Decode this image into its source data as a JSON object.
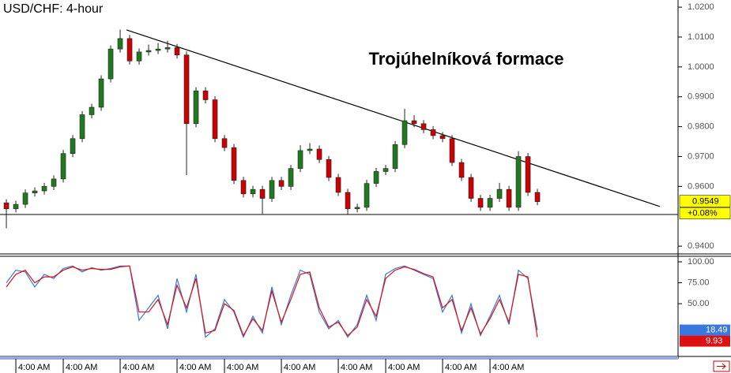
{
  "chart_data": [
    {
      "type": "candlestick",
      "title": "USD/CHF: 4-hour",
      "annotation": "Trojúhelníková formace",
      "change_label": "+0.08%",
      "categories": [
        null,
        "4:00 AM",
        null,
        null,
        null,
        null,
        "4:00 AM",
        null,
        null,
        null,
        null,
        null,
        "4:00 AM",
        null,
        null,
        null,
        null,
        null,
        "4:00 AM",
        null,
        null,
        null,
        null,
        "4:00 AM",
        null,
        null,
        null,
        null,
        null,
        "4:00 AM",
        null,
        null,
        null,
        null,
        null,
        "4:00 AM",
        null,
        null,
        null,
        null,
        "4:00 AM",
        null,
        null,
        null,
        null,
        null,
        "4:00 AM",
        null,
        null,
        null,
        null,
        "4:00 AM",
        null,
        null,
        null,
        null,
        null
      ],
      "open": [
        0.9545,
        0.9525,
        0.954,
        0.9578,
        0.9585,
        0.96,
        0.9625,
        0.971,
        0.976,
        0.984,
        0.9865,
        0.996,
        1.006,
        1.0095,
        1.002,
        1.005,
        1.0055,
        1.006,
        1.0065,
        1.004,
        0.981,
        0.992,
        0.989,
        0.976,
        0.973,
        0.962,
        0.9575,
        0.959,
        0.956,
        0.962,
        0.96,
        0.966,
        0.972,
        0.9725,
        0.969,
        0.963,
        0.958,
        0.9525,
        0.953,
        0.961,
        0.965,
        0.966,
        0.974,
        0.982,
        0.981,
        0.979,
        0.977,
        0.976,
        0.968,
        0.963,
        0.956,
        0.953,
        0.956,
        0.959,
        0.953,
        0.97,
        0.958
      ],
      "high": [
        0.9557,
        0.9552,
        0.959,
        0.9597,
        0.9612,
        0.9637,
        0.9722,
        0.9772,
        0.9852,
        0.9877,
        0.9972,
        1.0072,
        1.0125,
        1.0107,
        1.0062,
        1.0075,
        1.008,
        1.0088,
        1.0077,
        1.0052,
        0.9932,
        0.9932,
        0.9902,
        0.9772,
        0.9742,
        0.9632,
        0.9602,
        0.9602,
        0.9632,
        0.9632,
        0.9672,
        0.9738,
        0.9745,
        0.9737,
        0.9702,
        0.9642,
        0.9592,
        0.9542,
        0.9622,
        0.9662,
        0.9672,
        0.9752,
        0.986,
        0.9838,
        0.9822,
        0.9802,
        0.9782,
        0.9772,
        0.9692,
        0.9642,
        0.9572,
        0.9572,
        0.9612,
        0.9602,
        0.9718,
        0.9712,
        0.9592
      ],
      "low": [
        0.946,
        0.9513,
        0.9528,
        0.9566,
        0.9573,
        0.9588,
        0.9613,
        0.9698,
        0.9748,
        0.9828,
        0.9853,
        0.9948,
        1.0048,
        1.0008,
        1.0008,
        1.0038,
        1.0043,
        1.0048,
        1.0028,
        0.9638,
        0.9798,
        0.9878,
        0.9748,
        0.9718,
        0.9608,
        0.9563,
        0.9563,
        0.9508,
        0.9548,
        0.9588,
        0.9588,
        0.9648,
        0.9708,
        0.9678,
        0.9618,
        0.9568,
        0.9505,
        0.9513,
        0.9518,
        0.9598,
        0.9638,
        0.9648,
        0.9728,
        0.9798,
        0.9778,
        0.9758,
        0.9748,
        0.9668,
        0.9618,
        0.9548,
        0.9518,
        0.9518,
        0.9548,
        0.9518,
        0.9518,
        0.9568,
        0.9537
      ],
      "close": [
        0.9525,
        0.954,
        0.9578,
        0.9585,
        0.96,
        0.9625,
        0.971,
        0.976,
        0.984,
        0.9865,
        0.996,
        1.006,
        1.0095,
        1.002,
        1.005,
        1.0055,
        1.006,
        1.0065,
        1.004,
        0.981,
        0.992,
        0.989,
        0.976,
        0.973,
        0.962,
        0.9575,
        0.959,
        0.956,
        0.962,
        0.96,
        0.966,
        0.972,
        0.9725,
        0.969,
        0.963,
        0.958,
        0.9525,
        0.953,
        0.961,
        0.965,
        0.966,
        0.974,
        0.982,
        0.981,
        0.979,
        0.977,
        0.976,
        0.968,
        0.963,
        0.956,
        0.953,
        0.956,
        0.959,
        0.953,
        0.97,
        0.958,
        0.9549
      ],
      "up_color": "#1f7a1f",
      "down_color": "#cc0000",
      "xlim": [
        -0.67,
        70.83
      ],
      "ylim": [
        0.9374,
        1.0224
      ],
      "yticks": [
        {
          "value": 1.02,
          "label": "1.0200"
        },
        {
          "value": 1.01,
          "label": "1.0100"
        },
        {
          "value": 1.0,
          "label": "1.0000"
        },
        {
          "value": 0.99,
          "label": "0.9900"
        },
        {
          "value": 0.98,
          "label": "0.9800"
        },
        {
          "value": 0.97,
          "label": "0.9700"
        },
        {
          "value": 0.96,
          "label": "0.9600"
        },
        {
          "value": 0.94,
          "label": "0.9400"
        }
      ],
      "trendline": {
        "x": [
          12.67,
          68.9
        ],
        "y": [
          1.0124,
          0.9533
        ]
      },
      "support": 0.9506
    },
    {
      "type": "line",
      "series": [
        {
          "color": "#3a78e0",
          "values": [
            75,
            90,
            88,
            70,
            85,
            80,
            92,
            95,
            88,
            93,
            90,
            92,
            95,
            95,
            30,
            45,
            60,
            20,
            80,
            40,
            85,
            10,
            20,
            55,
            40,
            10,
            35,
            15,
            70,
            25,
            60,
            90,
            85,
            40,
            20,
            30,
            10,
            25,
            60,
            30,
            85,
            92,
            95,
            90,
            85,
            80,
            40,
            60,
            15,
            50,
            12,
            35,
            60,
            25,
            90,
            80,
            18.49
          ]
        },
        {
          "color": "#dd1111",
          "values": [
            70,
            85,
            90,
            75,
            82,
            82,
            90,
            94,
            90,
            92,
            91,
            91,
            94,
            95,
            40,
            40,
            55,
            25,
            72,
            45,
            80,
            15,
            18,
            50,
            42,
            12,
            32,
            18,
            65,
            28,
            55,
            85,
            88,
            45,
            22,
            28,
            12,
            22,
            55,
            35,
            80,
            90,
            94,
            91,
            86,
            82,
            45,
            55,
            18,
            45,
            14,
            32,
            55,
            28,
            85,
            82,
            9.93
          ]
        }
      ],
      "ylim": [
        -13,
        106.6
      ],
      "yticks": [
        {
          "value": 100,
          "label": "100.00"
        },
        {
          "value": 75,
          "label": "75.00"
        },
        {
          "value": 50,
          "label": "50.00"
        }
      ]
    }
  ]
}
